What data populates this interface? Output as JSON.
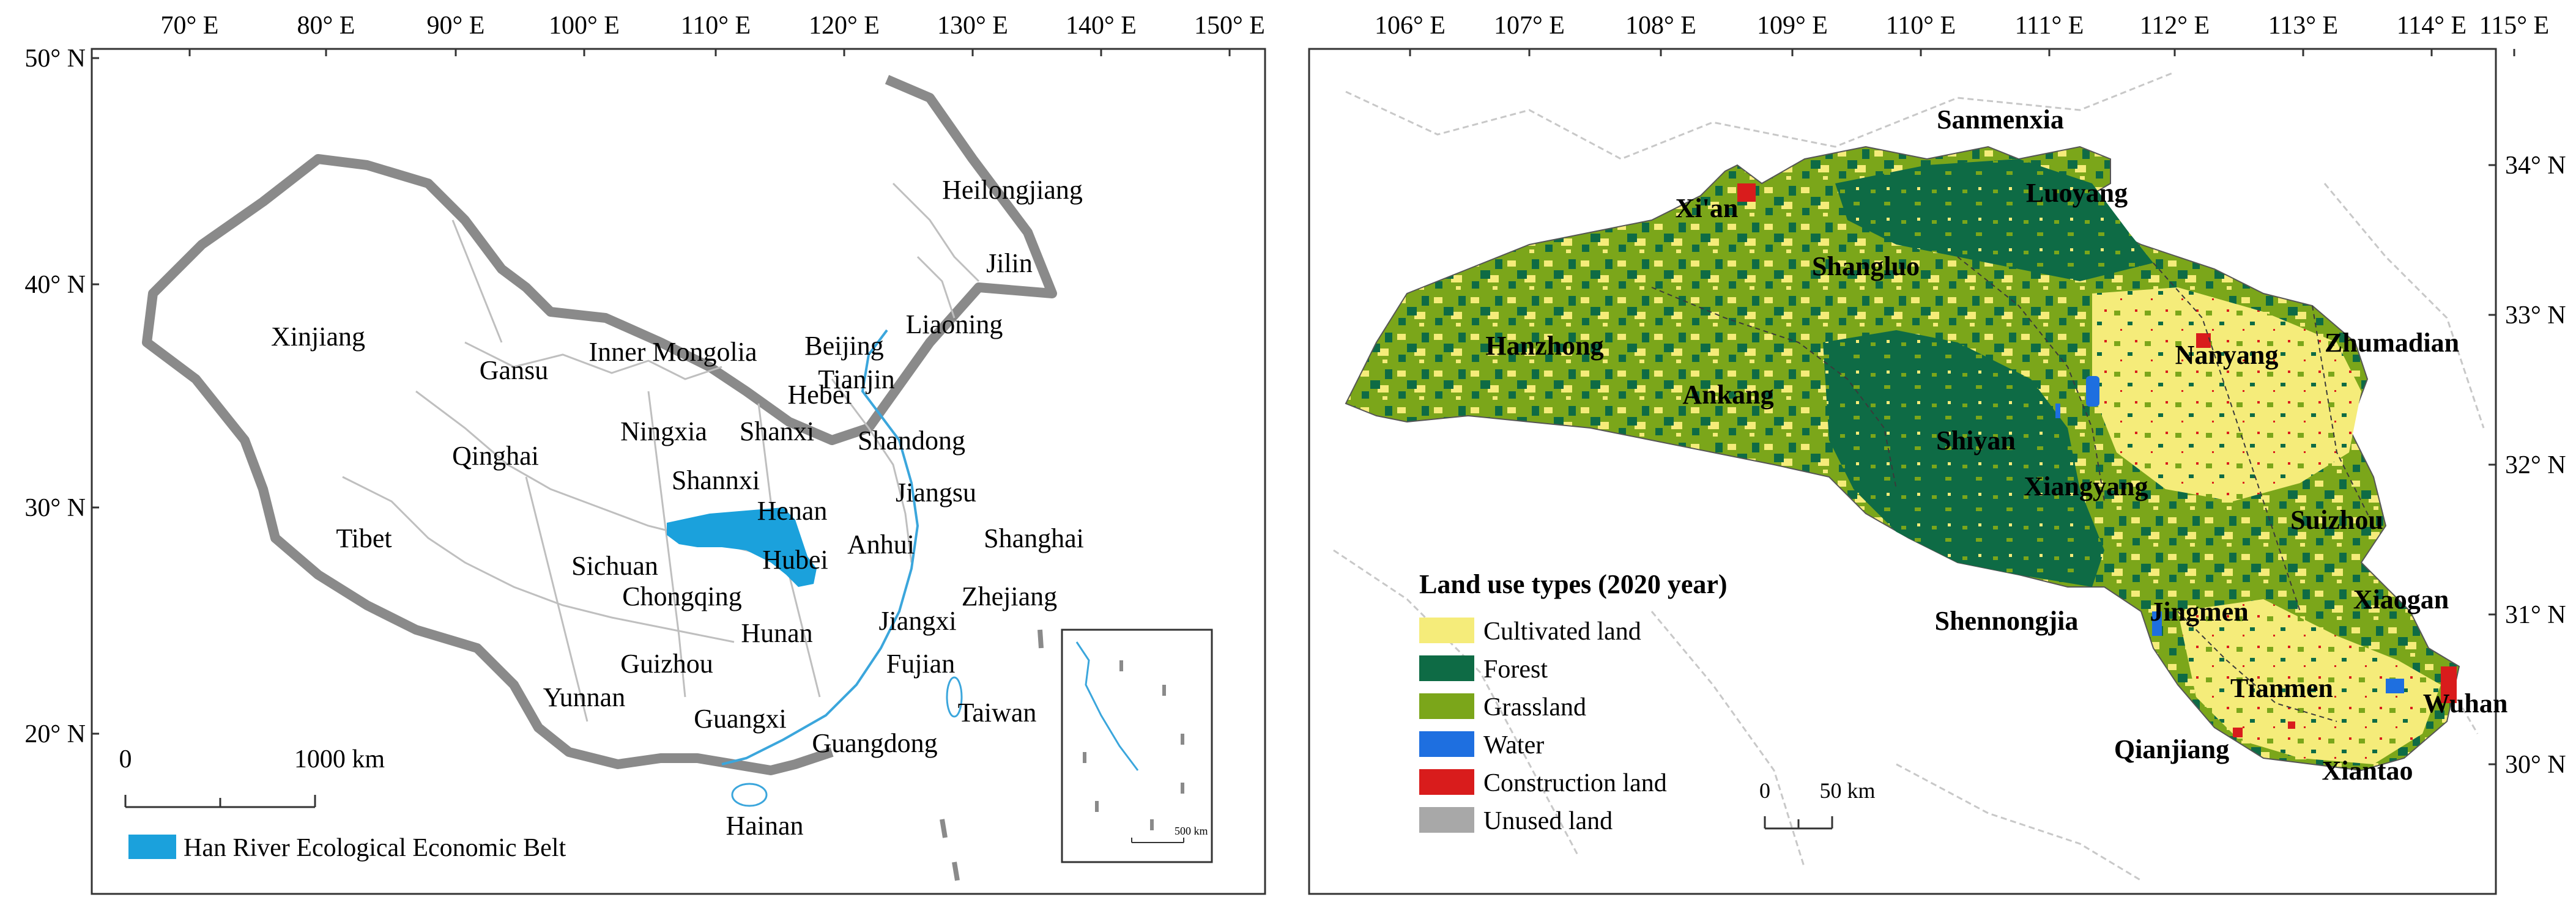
{
  "left_map": {
    "lon_ticks": [
      "70° E",
      "80° E",
      "90° E",
      "100° E",
      "110° E",
      "120° E",
      "130° E",
      "140° E",
      "150° E"
    ],
    "lat_ticks": [
      "50° N",
      "40° N",
      "30° N",
      "20° N"
    ],
    "provinces": [
      {
        "name": "Heilongjiang"
      },
      {
        "name": "Jilin"
      },
      {
        "name": "Liaoning"
      },
      {
        "name": "Xinjiang"
      },
      {
        "name": "Gansu"
      },
      {
        "name": "Inner Mongolia"
      },
      {
        "name": "Beijing"
      },
      {
        "name": "Hebei"
      },
      {
        "name": "Tianjin"
      },
      {
        "name": "Ningxia"
      },
      {
        "name": "Shanxi"
      },
      {
        "name": "Shandong"
      },
      {
        "name": "Qinghai"
      },
      {
        "name": "Shannxi"
      },
      {
        "name": "Henan"
      },
      {
        "name": "Jiangsu"
      },
      {
        "name": "Tibet"
      },
      {
        "name": "Anhui"
      },
      {
        "name": "Shanghai"
      },
      {
        "name": "Sichuan"
      },
      {
        "name": "Hubei"
      },
      {
        "name": "Chongqing"
      },
      {
        "name": "Zhejiang"
      },
      {
        "name": "Hunan"
      },
      {
        "name": "Jiangxi"
      },
      {
        "name": "Guizhou"
      },
      {
        "name": "Fujian"
      },
      {
        "name": "Yunnan"
      },
      {
        "name": "Taiwan"
      },
      {
        "name": "Guangxi"
      },
      {
        "name": "Guangdong"
      },
      {
        "name": "Hainan"
      }
    ],
    "scale_bar": {
      "start": "0",
      "end": "1000 km"
    },
    "inset_scale": "500 km",
    "legend": {
      "label": "Han River Ecological Economic Belt",
      "color": "#1ba1dc"
    }
  },
  "right_map": {
    "lon_ticks": [
      "106° E",
      "107° E",
      "108° E",
      "109° E",
      "110° E",
      "111° E",
      "112° E",
      "113° E",
      "114° E",
      "115° E"
    ],
    "lat_ticks": [
      "34° N",
      "33° N",
      "32° N",
      "31° N",
      "30° N"
    ],
    "cities": [
      {
        "name": "Sanmenxia"
      },
      {
        "name": "Xi'an"
      },
      {
        "name": "Luoyang"
      },
      {
        "name": "Shangluo"
      },
      {
        "name": "Hanzhong"
      },
      {
        "name": "Nanyang"
      },
      {
        "name": "Zhumadian"
      },
      {
        "name": "Ankang"
      },
      {
        "name": "Shiyan"
      },
      {
        "name": "Xiangyang"
      },
      {
        "name": "Suizhou"
      },
      {
        "name": "Shennongjia"
      },
      {
        "name": "Jingmen"
      },
      {
        "name": "Xiaogan"
      },
      {
        "name": "Tianmen"
      },
      {
        "name": "Wuhan"
      },
      {
        "name": "Qianjiang"
      },
      {
        "name": "Xiantao"
      }
    ],
    "legend": {
      "title": "Land use types (2020 year)",
      "items": [
        {
          "label": "Cultivated land",
          "color": "#f5ec7a"
        },
        {
          "label": "Forest",
          "color": "#0e6b45"
        },
        {
          "label": "Grassland",
          "color": "#7ba61a"
        },
        {
          "label": "Water",
          "color": "#1e6fe0"
        },
        {
          "label": "Construction land",
          "color": "#d91c1c"
        },
        {
          "label": "Unused land",
          "color": "#a8a8a8"
        }
      ]
    },
    "scale_bar": {
      "start": "0",
      "end": "50 km"
    }
  }
}
